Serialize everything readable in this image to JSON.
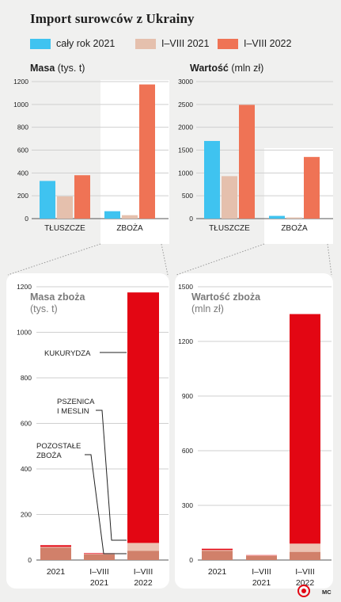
{
  "title": "Import surowców z Ukrainy",
  "legend": [
    {
      "label": "cały rok 2021",
      "color": "#3fc3f0"
    },
    {
      "label": "I–VIII 2021",
      "color": "#e5c0ad"
    },
    {
      "label": "I–VIII 2022",
      "color": "#ef7355"
    }
  ],
  "footer": {
    "logo": "pap-logo-icon",
    "credit": "MC"
  },
  "chart_data": [
    {
      "type": "bar",
      "title": "Masa",
      "unit": "(tys. t)",
      "categories": [
        "TŁUSZCZE",
        "ZBOŻA"
      ],
      "series": [
        {
          "name": "cały rok 2021",
          "values": [
            330,
            65
          ]
        },
        {
          "name": "I–VIII 2021",
          "values": [
            195,
            30
          ]
        },
        {
          "name": "I–VIII 2022",
          "values": [
            380,
            1175
          ]
        }
      ],
      "ylim": [
        0,
        1200
      ],
      "yticks": [
        "0",
        "200",
        "400",
        "600",
        "800",
        "1000",
        "1200"
      ],
      "grid": true
    },
    {
      "type": "bar",
      "title": "Wartość",
      "unit": "(mln zł)",
      "categories": [
        "TŁUSZCZE",
        "ZBOŻA"
      ],
      "series": [
        {
          "name": "cały rok 2021",
          "values": [
            1700,
            60
          ]
        },
        {
          "name": "I–VIII 2021",
          "values": [
            930,
            25
          ]
        },
        {
          "name": "I–VIII 2022",
          "values": [
            2490,
            1350
          ]
        }
      ],
      "ylim": [
        0,
        3000
      ],
      "yticks": [
        "0",
        "500",
        "1000",
        "1500",
        "2000",
        "2500",
        "3000"
      ],
      "grid": true
    },
    {
      "type": "bar",
      "title": "Masa zboża",
      "unit": "(tys. t)",
      "categories": [
        "2021",
        "I–VIII\n2021",
        "I–VIII\n2022"
      ],
      "series": [
        {
          "name": "POZOSTAŁE ZBOŻA",
          "values": [
            55,
            25,
            40
          ],
          "color": "#d1806a"
        },
        {
          "name": "PSZENICA I MESLIN",
          "values": [
            3,
            2,
            35
          ],
          "color": "#ecc3b3"
        },
        {
          "name": "KUKURYDZA",
          "values": [
            7,
            3,
            1100
          ],
          "color": "#e30613"
        }
      ],
      "annotations": [
        "KUKURYDZA",
        "PSZENICA\nI MESLIN",
        "POZOSTAŁE\nZBOŻA"
      ],
      "ylim": [
        0,
        1200
      ],
      "yticks": [
        "0",
        "200",
        "400",
        "600",
        "800",
        "1000",
        "1200"
      ],
      "grid": true
    },
    {
      "type": "bar",
      "title": "Wartość zboża",
      "unit": "(mln zł)",
      "categories": [
        "2021",
        "I–VIII\n2021",
        "I–VIII\n2022"
      ],
      "series": [
        {
          "name": "POZOSTAŁE ZBOŻA",
          "values": [
            50,
            23,
            45
          ],
          "color": "#d1806a"
        },
        {
          "name": "PSZENICA I MESLIN",
          "values": [
            5,
            2,
            45
          ],
          "color": "#ecc3b3"
        },
        {
          "name": "KUKURYDZA",
          "values": [
            7,
            2,
            1260
          ],
          "color": "#e30613"
        }
      ],
      "ylim": [
        0,
        1500
      ],
      "yticks": [
        "0",
        "300",
        "600",
        "900",
        "1200",
        "1500"
      ],
      "grid": true
    }
  ]
}
